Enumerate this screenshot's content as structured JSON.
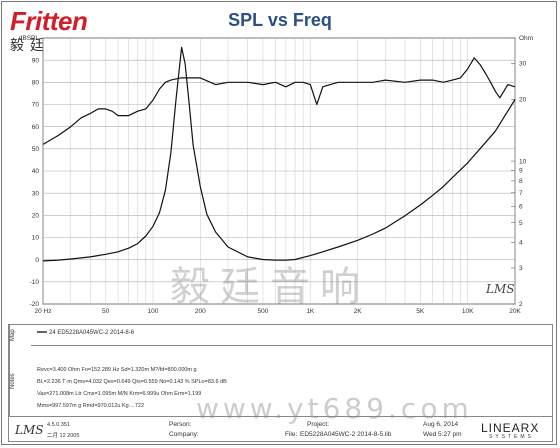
{
  "logo": {
    "brand": "Fritten",
    "subtitle": "毅廷音响"
  },
  "chart_data": {
    "type": "line",
    "title": "SPL vs Freq",
    "x_scale": "log",
    "xlim": [
      20,
      20000
    ],
    "x_ticks": [
      20,
      50,
      100,
      200,
      500,
      1000,
      2000,
      5000,
      10000,
      20000
    ],
    "x_tick_labels": [
      "20 Hz",
      "50",
      "100",
      "200",
      "500",
      "1K",
      "2K",
      "5K",
      "10K",
      "20K"
    ],
    "y_left_label": "dBSPL",
    "y_left_lim": [
      -20,
      100
    ],
    "y_left_ticks": [
      -20,
      -10,
      0,
      10,
      20,
      30,
      40,
      50,
      60,
      70,
      80,
      90,
      100
    ],
    "y_left_tick_labels": [
      "-20",
      "-10",
      "0",
      "10",
      "20",
      "30",
      "40",
      "50",
      "60",
      "70",
      "80",
      "90",
      "dBSPL"
    ],
    "y_right_label": "Ohm",
    "y_right_scale": "log",
    "y_right_lim": [
      2,
      40
    ],
    "y_right_ticks": [
      2,
      3,
      4,
      5,
      6,
      7,
      8,
      9,
      10,
      20,
      30,
      40
    ],
    "y_right_tick_labels": [
      "2",
      "3",
      "4",
      "5",
      "6",
      "7",
      "8",
      "9",
      "10",
      "20",
      "30",
      "Ohm"
    ],
    "grid": true,
    "series": [
      {
        "axis": "left",
        "x": [
          20,
          25,
          30,
          35,
          40,
          45,
          50,
          55,
          60,
          70,
          80,
          90,
          100,
          110,
          120,
          130,
          150,
          180,
          200,
          250,
          300,
          400,
          500,
          600,
          700,
          800,
          900,
          1000,
          1100,
          1200,
          1500,
          2000,
          2500,
          3000,
          4000,
          5000,
          6000,
          7000,
          8000,
          9000,
          10000,
          11000,
          12000,
          13000,
          14000,
          15000,
          16000,
          17000,
          18000,
          20000
        ],
        "y": [
          52,
          56,
          60,
          64,
          66,
          68,
          68,
          67,
          65,
          65,
          67,
          68,
          72,
          77,
          80,
          81,
          82,
          82,
          82,
          79,
          80,
          80,
          79,
          80,
          78,
          80,
          80,
          79,
          70,
          78,
          80,
          80,
          80,
          81,
          80,
          81,
          81,
          80,
          81,
          82,
          86,
          91,
          88,
          84,
          80,
          76,
          73,
          76,
          79,
          78
        ]
      },
      {
        "axis": "right",
        "x": [
          20,
          25,
          30,
          40,
          50,
          60,
          70,
          80,
          90,
          100,
          110,
          120,
          130,
          140,
          152,
          160,
          170,
          180,
          200,
          220,
          250,
          300,
          400,
          500,
          600,
          700,
          800,
          1000,
          1200,
          1500,
          2000,
          2500,
          3000,
          4000,
          5000,
          6000,
          7000,
          8000,
          10000,
          12000,
          15000,
          20000
        ],
        "y": [
          3.25,
          3.28,
          3.32,
          3.4,
          3.5,
          3.6,
          3.75,
          3.95,
          4.3,
          4.8,
          5.6,
          7.2,
          11,
          20,
          36,
          30,
          19,
          12,
          7.5,
          5.5,
          4.5,
          3.8,
          3.4,
          3.3,
          3.28,
          3.28,
          3.3,
          3.45,
          3.6,
          3.8,
          4.1,
          4.4,
          4.7,
          5.4,
          6.1,
          6.8,
          7.5,
          8.3,
          9.8,
          11.5,
          14,
          20
        ]
      }
    ],
    "annotation": "LMS"
  },
  "watermark": {
    "center": "毅廷音响",
    "url": "www.yt689.com"
  },
  "info": {
    "map_label": "Map",
    "map_entry": "24  ED5228A045WC-2    2014-8-6",
    "notes_label": "Notes",
    "notes": [
      "Revc=3.400 Ohm  Fo=152.289 Hz  Sd=1.320m  M?/fd=800.000m g",
      "BL=2.236 T·m  Qms=4.032  Qes=0.649  Qts=0.559  No=0.143 %  SPLo=83.6 dB",
      "Vas=271.008m Ltr  Cms=1.095m M/N  Krm=6.999u Ohm  Erm=1.199",
      "Mms=997.597m g  Rmd=970.012u Kg  ...722"
    ]
  },
  "footer": {
    "logo": "LMS",
    "version": "4.5.0.351",
    "date": "二月 12 2005",
    "person_label": "Person:",
    "company_label": "Company:",
    "project_label": "Project:",
    "file_label": "File:",
    "file_value": "ED5228A045WC-2   2014-8-5.lib",
    "date_label": "Aug  6, 2014",
    "time_label": "Wed  5:27 pm",
    "brand": "LINEARX",
    "brand_sub": "SYSTEMS"
  }
}
